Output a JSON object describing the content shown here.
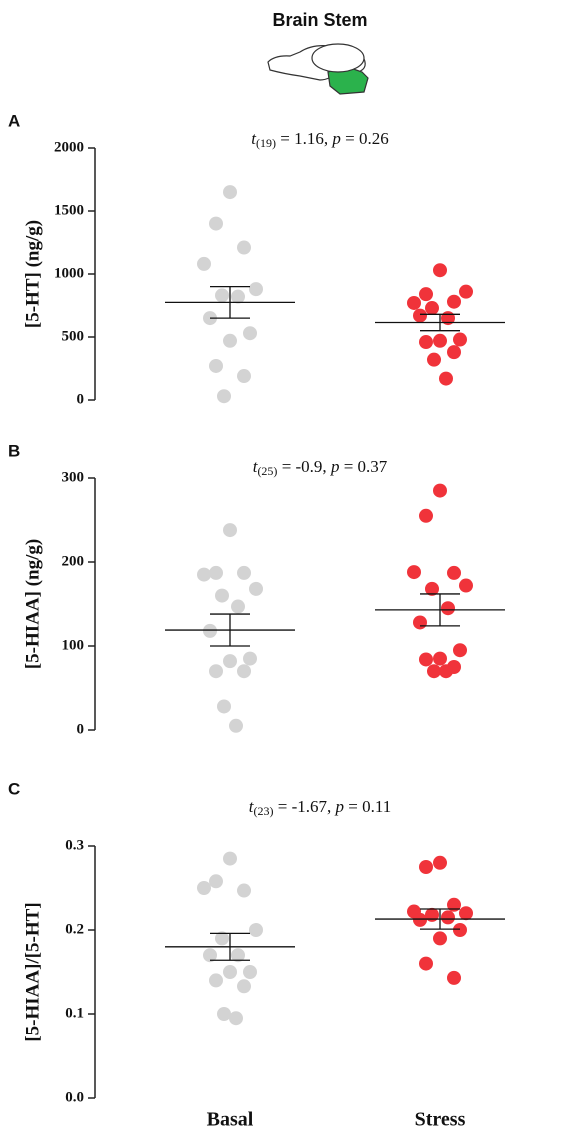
{
  "title": "Brain Stem",
  "chart_data": [
    {
      "type": "scatter",
      "panel": "A",
      "annotation": [
        "t",
        "(19)",
        " = 1.16, ",
        "p",
        " = 0.26"
      ],
      "ylabel": "[5-HT] (ng/g)",
      "ylim": [
        0,
        2000
      ],
      "yticks": [
        0,
        500,
        1000,
        1500,
        2000
      ],
      "series": [
        {
          "color": "#d3d3d3",
          "values": [
            1650,
            1400,
            1210,
            1080,
            880,
            830,
            820,
            650,
            530,
            470,
            270,
            190,
            30
          ],
          "mean": 775,
          "sem": 125
        },
        {
          "color": "#f0333a",
          "values": [
            1030,
            840,
            780,
            770,
            860,
            730,
            650,
            670,
            480,
            470,
            460,
            380,
            320,
            170
          ],
          "mean": 615,
          "sem": 65
        }
      ]
    },
    {
      "type": "scatter",
      "panel": "B",
      "annotation": [
        "t",
        "(25)",
        " = -0.9, ",
        "p",
        " = 0.37"
      ],
      "ylabel": "[5-HIAA] (ng/g)",
      "ylim": [
        0,
        300
      ],
      "yticks": [
        0,
        100,
        200,
        300
      ],
      "series": [
        {
          "color": "#d3d3d3",
          "values": [
            238,
            187,
            187,
            185,
            168,
            160,
            147,
            118,
            85,
            82,
            70,
            70,
            28,
            5
          ],
          "mean": 119,
          "sem": 19
        },
        {
          "color": "#f0333a",
          "values": [
            285,
            255,
            187,
            188,
            172,
            168,
            145,
            128,
            95,
            85,
            84,
            75,
            70,
            70
          ],
          "mean": 143,
          "sem": 19
        }
      ]
    },
    {
      "type": "scatter",
      "panel": "C",
      "annotation": [
        "t",
        "(23)",
        " = -1.67, ",
        "p",
        " = 0.11"
      ],
      "ylabel": "[5-HIAA]/[5-HT]",
      "categories": [
        "Basal",
        "Stress"
      ],
      "ylim": [
        0,
        0.3
      ],
      "yticks": [
        {
          "value": 0,
          "label": "0.0"
        },
        0.1,
        0.2,
        0.3
      ],
      "series": [
        {
          "color": "#d3d3d3",
          "values": [
            0.285,
            0.258,
            0.247,
            0.25,
            0.2,
            0.19,
            0.17,
            0.17,
            0.15,
            0.15,
            0.14,
            0.133,
            0.1,
            0.095
          ],
          "mean": 0.18,
          "sem": 0.016
        },
        {
          "color": "#f0333a",
          "values": [
            0.28,
            0.275,
            0.23,
            0.222,
            0.22,
            0.218,
            0.215,
            0.212,
            0.2,
            0.19,
            0.16,
            0.143
          ],
          "mean": 0.213,
          "sem": 0.012
        }
      ]
    }
  ]
}
